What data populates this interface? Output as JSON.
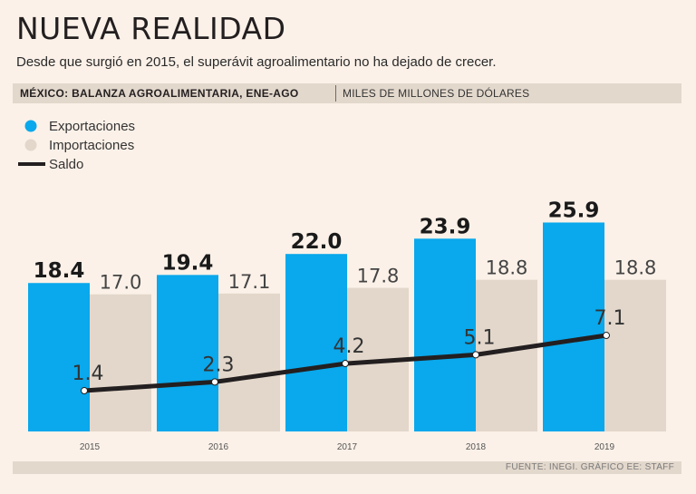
{
  "title": "NUEVA REALIDAD",
  "subtitle": "Desde que surgió en 2015, el superávit agroalimentario no ha dejado de crecer.",
  "header": {
    "main": "MÉXICO: BALANZA AGROALIMENTARIA, ENE-AGO",
    "unit": "MILES DE MILLONES DE DÓLARES"
  },
  "source": "FUENTE: INEGI. GRÁFICO EE: STAFF",
  "colors": {
    "exportaciones": "#0aa8ec",
    "importaciones": "#e3d7cb",
    "saldo": "#231f20"
  },
  "chart_data": {
    "type": "bar",
    "categories": [
      "2015",
      "2016",
      "2017",
      "2018",
      "2019"
    ],
    "series": [
      {
        "name": "Exportaciones",
        "type": "bar",
        "values": [
          18.4,
          19.4,
          22.0,
          23.9,
          25.9
        ],
        "labels": [
          "18.4",
          "19.4",
          "22.0",
          "23.9",
          "25.9"
        ]
      },
      {
        "name": "Importaciones",
        "type": "bar",
        "values": [
          17.0,
          17.1,
          17.8,
          18.8,
          18.8
        ],
        "labels": [
          "17.0",
          "17.1",
          "17.8",
          "18.8",
          "18.8"
        ]
      },
      {
        "name": "Saldo",
        "type": "line",
        "values": [
          1.4,
          2.3,
          4.2,
          5.1,
          7.1
        ],
        "labels": [
          "1.4",
          "2.3",
          "4.2",
          "5.1",
          "7.1"
        ]
      }
    ],
    "legend": [
      "Exportaciones",
      "Importaciones",
      "Saldo"
    ],
    "legend_position": "top-left",
    "ylim": [
      0,
      26
    ],
    "grid": false
  }
}
